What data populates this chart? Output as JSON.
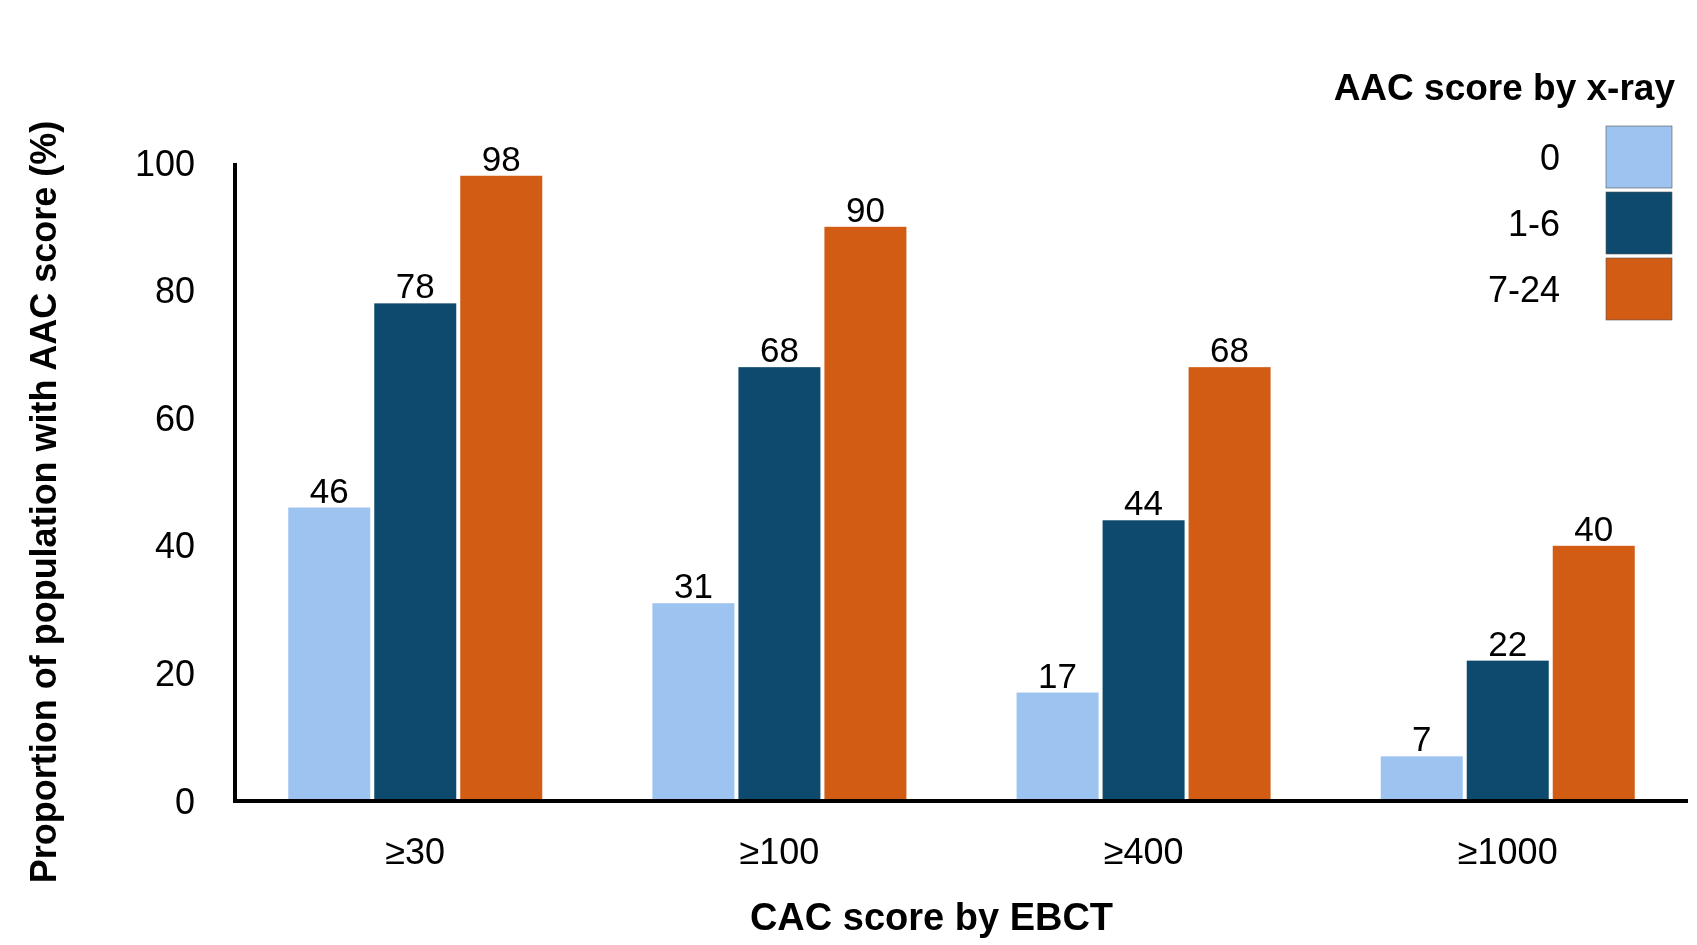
{
  "chart_data": {
    "type": "bar",
    "xlabel": "CAC score by EBCT",
    "ylabel": "Proportion of population with AAC score (%)",
    "legend_title": "AAC score by x-ray",
    "categories": [
      "≥30",
      "≥100",
      "≥400",
      "≥1000"
    ],
    "series": [
      {
        "name": "0",
        "color": "#9dc3f0",
        "values": [
          46,
          31,
          17,
          7
        ]
      },
      {
        "name": "1-6",
        "color": "#0d4a6e",
        "values": [
          78,
          68,
          44,
          22
        ]
      },
      {
        "name": "7-24",
        "color": "#d35c14",
        "values": [
          98,
          90,
          68,
          40
        ]
      }
    ],
    "ylim": [
      0,
      100
    ],
    "yticks": [
      0,
      20,
      40,
      60,
      80,
      100
    ],
    "data_labels": true,
    "legend": "top right"
  }
}
